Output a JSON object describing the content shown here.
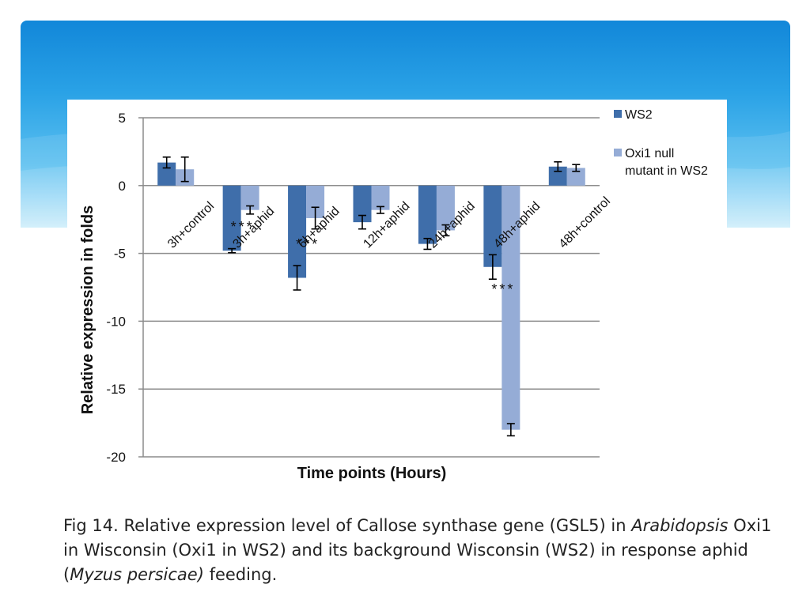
{
  "slide": {
    "caption": {
      "text_1": "Fig 14. Relative expression level of Callose synthase gene (GSL5) in ",
      "italic_1": "Arabidopsis",
      "text_2": " Oxi1 in Wisconsin (Oxi1 in WS2) and its background Wisconsin (WS2) in response aphid (",
      "italic_2": "Myzus persicae)",
      "text_3": " feeding."
    },
    "colors": {
      "banner_top": "#1287d9",
      "banner_bottom": "#c9ecfb"
    }
  },
  "chart_data": {
    "type": "bar",
    "categories": [
      "3h+control",
      "3h+aphid",
      "6h+aphid",
      "12h+aphid",
      "24h+aphid",
      "48h+aphid",
      "48h+control"
    ],
    "series": [
      {
        "name": "WS2",
        "color": "#3f6eaa",
        "values": [
          1.7,
          -4.8,
          -6.8,
          -2.7,
          -4.3,
          -6.0,
          1.4
        ],
        "errors": [
          0.4,
          0.15,
          0.9,
          0.5,
          0.4,
          0.9,
          0.35
        ]
      },
      {
        "name": "Oxi1 null mutant in WS2",
        "color": "#95acd6",
        "values": [
          1.2,
          -1.8,
          -2.4,
          -1.8,
          -3.3,
          -18.0,
          1.3
        ],
        "errors": [
          0.9,
          0.3,
          0.8,
          0.25,
          0.4,
          0.45,
          0.25
        ]
      }
    ],
    "annotations": [
      {
        "text": "***",
        "category": "3h+aphid",
        "value": -2.8
      },
      {
        "text": "***",
        "category": "6h+aphid",
        "value": -4.1
      },
      {
        "text": "***",
        "category": "48h+aphid",
        "value": -7.4
      }
    ],
    "title": "",
    "xlabel": "Time points (Hours)",
    "ylabel": "Relative expression in folds",
    "ylim": [
      -20,
      5
    ],
    "yticks": [
      5,
      0,
      -5,
      -10,
      -15,
      -20
    ],
    "grid": true,
    "legend": "right"
  }
}
